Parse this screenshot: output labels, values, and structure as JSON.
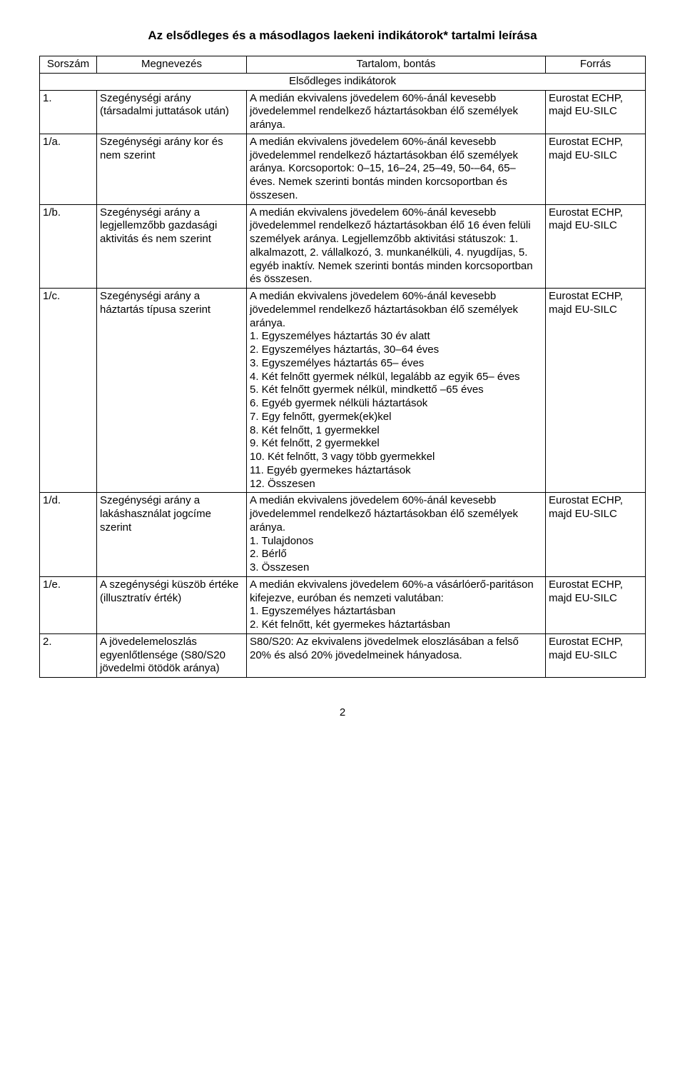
{
  "title": "Az elsődleges és a másodlagos laekeni indikátorok* tartalmi leírása",
  "headers": {
    "sorszam": "Sorszám",
    "megnevezes": "Megnevezés",
    "tartalom": "Tartalom, bontás",
    "forras": "Forrás"
  },
  "section_label": "Elsődleges indikátorok",
  "source_text": "Eurostat ECHP, majd EU-SILC",
  "rows": [
    {
      "sorszam": "1.",
      "megnevezes": "Szegénységi arány (társadalmi juttatások után)",
      "tartalom": "A medián ekvivalens jövedelem 60%-ánál kevesebb jövedelemmel rendelkező háztartásokban élő személyek aránya."
    },
    {
      "sorszam": "1/a.",
      "megnevezes": "Szegénységi arány kor és nem szerint",
      "tartalom": "A medián ekvivalens jövedelem 60%-ánál kevesebb jövedelemmel rendelkező háztartásokban élő személyek aránya. Korcsoportok: 0–15, 16–24, 25–49, 50-–64, 65– éves. Nemek szerinti bontás minden korcsoportban és összesen."
    },
    {
      "sorszam": "1/b.",
      "megnevezes": "Szegénységi arány a legjellemzőbb gazdasági aktivitás és nem szerint",
      "tartalom": "A medián ekvivalens jövedelem 60%-ánál kevesebb jövedelemmel rendelkező háztartásokban élő 16 éven felüli személyek aránya. Legjellemzőbb aktivitási státuszok: 1. alkalmazott, 2. vállalkozó, 3. munkanélküli, 4. nyugdíjas, 5. egyéb inaktív. Nemek szerinti bontás minden korcsoportban és összesen."
    },
    {
      "sorszam": "1/c.",
      "megnevezes": "Szegénységi arány a háztartás típusa szerint",
      "tartalom": "A medián ekvivalens jövedelem 60%-ánál kevesebb jövedelemmel rendelkező háztartásokban élő személyek aránya.\n1. Egyszemélyes háztartás 30 év alatt\n2. Egyszemélyes háztartás, 30–64 éves\n3. Egyszemélyes háztartás 65– éves\n4. Két felnőtt gyermek nélkül, legalább az egyik 65– éves\n5. Két felnőtt gyermek nélkül, mindkettő –65 éves\n6. Egyéb gyermek nélküli háztartások\n7. Egy felnőtt, gyermek(ek)kel\n8. Két felnőtt, 1 gyermekkel\n9. Két felnőtt, 2 gyermekkel\n10. Két felnőtt, 3 vagy több gyermekkel\n11. Egyéb gyermekes háztartások\n12. Összesen"
    },
    {
      "sorszam": "1/d.",
      "megnevezes": "Szegénységi arány a lakáshasználat jogcíme szerint",
      "tartalom": "A medián ekvivalens jövedelem 60%-ánál kevesebb jövedelemmel rendelkező háztartásokban élő személyek aránya.\n1. Tulajdonos\n2. Bérlő\n3. Összesen"
    },
    {
      "sorszam": "1/e.",
      "megnevezes": "A szegénységi küszöb értéke (illusztratív érték)",
      "tartalom": "A medián ekvivalens jövedelem 60%-a vásárlóerő-paritáson kifejezve, euróban és nemzeti valutában:\n1. Egyszemélyes háztartásban\n2. Két felnőtt, két gyermekes háztartásban"
    },
    {
      "sorszam": "2.",
      "megnevezes": "A jövedelemeloszlás egyenlőtlensége (S80/S20 jövedelmi ötödök aránya)",
      "tartalom": "S80/S20: Az ekvivalens jövedelmek eloszlásában a felső 20% és alsó 20% jövedelmeinek hányadosa."
    }
  ],
  "page_number": "2"
}
